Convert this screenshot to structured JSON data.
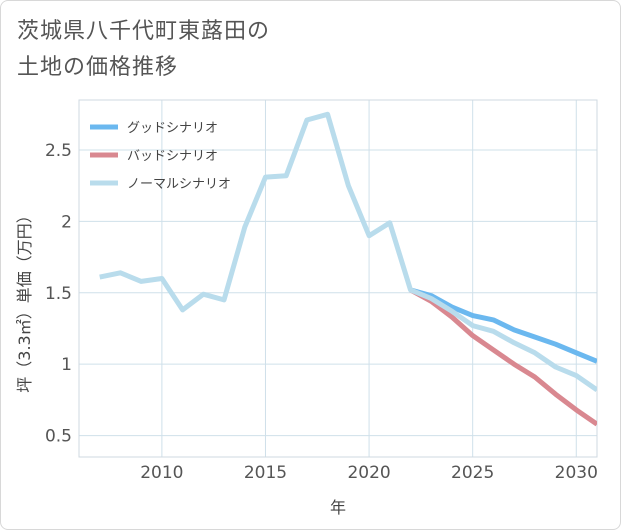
{
  "title_lines": [
    "茨城県八千代町東蕗田の",
    "土地の価格推移"
  ],
  "chart_data": {
    "type": "line",
    "title": "茨城県八千代町東蕗田の土地の価格推移",
    "xlabel": "年",
    "ylabel": "坪（3.3㎡）単価（万円）",
    "xlim": [
      2006,
      2031
    ],
    "ylim": [
      0.35,
      2.85
    ],
    "xticks": [
      2010,
      2015,
      2020,
      2025,
      2030
    ],
    "yticks": [
      0.5,
      1,
      1.5,
      2,
      2.5
    ],
    "xtick_labels": [
      "2010",
      "2015",
      "2020",
      "2025",
      "2030"
    ],
    "ytick_labels": [
      "0.5",
      "1",
      "1.5",
      "2",
      "2.5"
    ],
    "legend_position": "top-left",
    "series": [
      {
        "name": "グッドシナリオ",
        "color": "#6bb8ef",
        "x": [
          2022,
          2023,
          2024,
          2025,
          2026,
          2027,
          2028,
          2029,
          2030,
          2031
        ],
        "values": [
          1.52,
          1.48,
          1.4,
          1.34,
          1.31,
          1.24,
          1.19,
          1.14,
          1.08,
          1.02
        ]
      },
      {
        "name": "バッドシナリオ",
        "color": "#d98890",
        "x": [
          2022,
          2023,
          2024,
          2025,
          2026,
          2027,
          2028,
          2029,
          2030,
          2031
        ],
        "values": [
          1.52,
          1.44,
          1.33,
          1.2,
          1.1,
          1.0,
          0.91,
          0.79,
          0.68,
          0.58
        ]
      },
      {
        "name": "ノーマルシナリオ",
        "color": "#b9dcec",
        "x": [
          2007,
          2008,
          2009,
          2010,
          2011,
          2012,
          2013,
          2014,
          2015,
          2016,
          2017,
          2018,
          2019,
          2020,
          2021,
          2022,
          2023,
          2024,
          2025,
          2026,
          2027,
          2028,
          2029,
          2030,
          2031
        ],
        "values": [
          1.61,
          1.64,
          1.58,
          1.6,
          1.38,
          1.49,
          1.45,
          1.96,
          2.31,
          2.32,
          2.71,
          2.75,
          2.25,
          1.9,
          1.99,
          1.52,
          1.46,
          1.37,
          1.27,
          1.23,
          1.15,
          1.08,
          0.98,
          0.92,
          0.82
        ]
      }
    ]
  }
}
